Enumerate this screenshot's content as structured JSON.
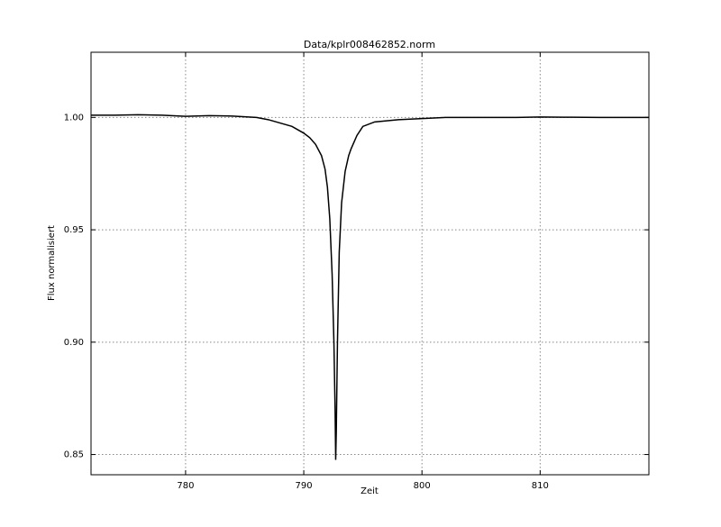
{
  "chart_data": {
    "type": "line",
    "title": "Data/kplr008462852.norm",
    "x_label": "Zeit",
    "y_label": "Flux normalisiert",
    "x": [
      772,
      774,
      776,
      778,
      780,
      782,
      784,
      786,
      787,
      788,
      789,
      790,
      790.5,
      791,
      791.5,
      791.8,
      792,
      792.2,
      792.4,
      792.55,
      792.65,
      792.7,
      792.75,
      792.85,
      793,
      793.2,
      793.5,
      793.8,
      794,
      794.5,
      795,
      796,
      798,
      800,
      802,
      808,
      810,
      812,
      815,
      819.2
    ],
    "series": [
      {
        "name": "Flux",
        "color": "#000000",
        "values": [
          1.001,
          1.001,
          1.0012,
          1.001,
          1.0005,
          1.0008,
          1.0006,
          1.0,
          0.999,
          0.9975,
          0.996,
          0.993,
          0.991,
          0.988,
          0.983,
          0.977,
          0.969,
          0.955,
          0.93,
          0.9,
          0.87,
          0.8476,
          0.86,
          0.9,
          0.94,
          0.962,
          0.976,
          0.983,
          0.986,
          0.992,
          0.996,
          0.998,
          0.999,
          0.9995,
          1.0,
          1.0,
          1.0002,
          1.0001,
          1.0,
          1.0
        ]
      }
    ],
    "xlim": [
      772,
      819.2
    ],
    "ylim": [
      0.841,
      1.029
    ],
    "xticks": [
      780,
      790,
      800,
      810
    ],
    "yticks": [
      {
        "value": 0.85,
        "label": "0.85"
      },
      {
        "value": 0.9,
        "label": "0.90"
      },
      {
        "value": 0.95,
        "label": "0.95"
      },
      {
        "value": 1.0,
        "label": "1.00"
      }
    ],
    "grid": true
  }
}
